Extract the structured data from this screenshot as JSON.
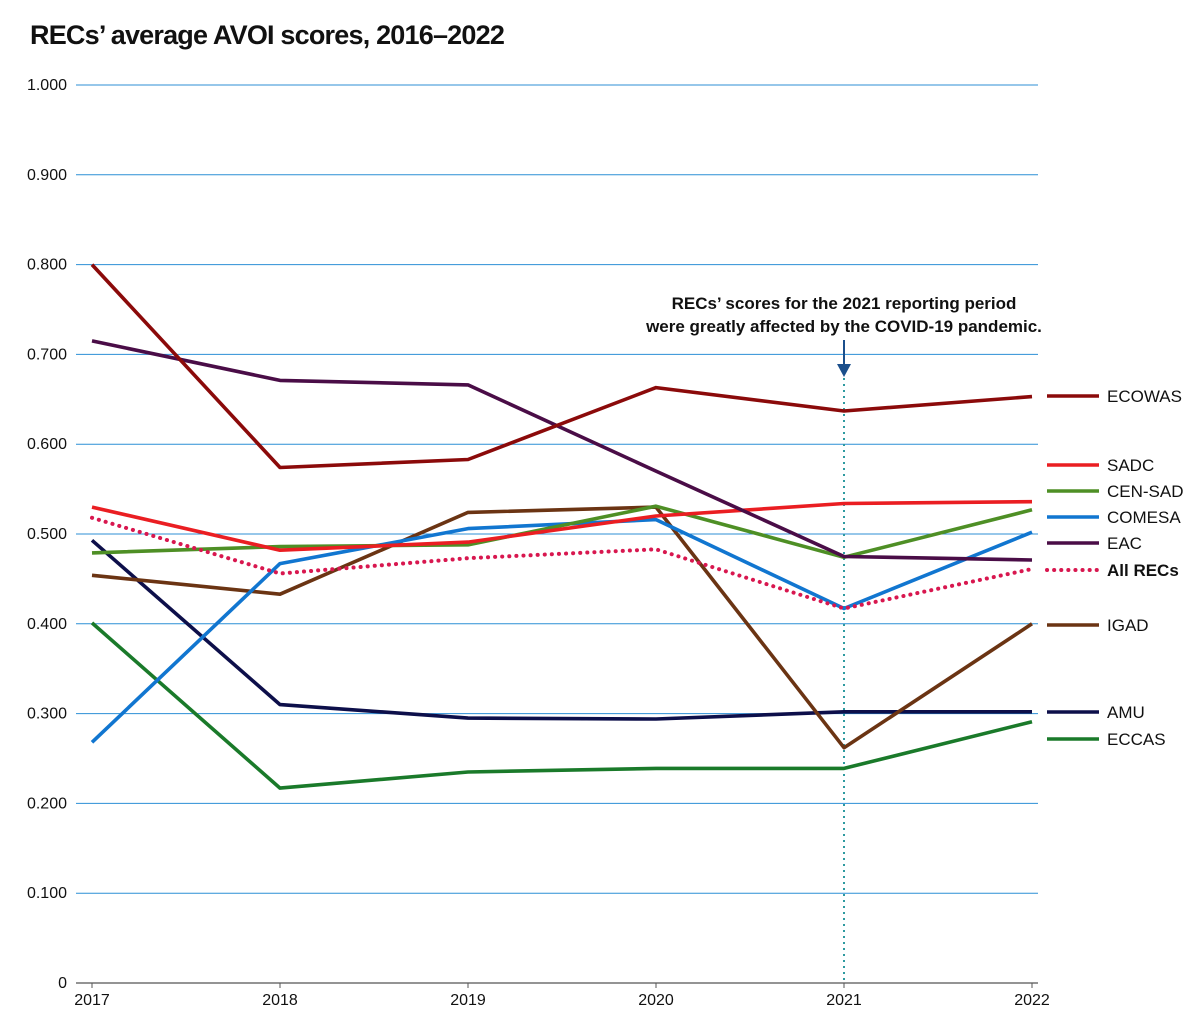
{
  "chart_data": {
    "type": "line",
    "title": "RECs’ average AVOI scores, 2016–2022",
    "xlabel": "",
    "ylabel": "",
    "x": [
      "2017",
      "2018",
      "2019",
      "2020",
      "2021",
      "2022"
    ],
    "ylim": [
      0,
      1
    ],
    "y_ticks": [
      "0",
      "0.100",
      "0.200",
      "0.300",
      "0.400",
      "0.500",
      "0.600",
      "0.700",
      "0.800",
      "0.900",
      "1.000"
    ],
    "grid": true,
    "legend_placement": "right",
    "series": [
      {
        "name": "ECOWAS",
        "color": "#8b0a0a",
        "style": "solid",
        "values": [
          0.8,
          0.574,
          0.583,
          0.663,
          0.637,
          0.653
        ]
      },
      {
        "name": "SADC",
        "color": "#ea1e22",
        "style": "solid",
        "values": [
          0.53,
          0.482,
          0.491,
          0.52,
          0.534,
          0.536
        ]
      },
      {
        "name": "CEN-SAD",
        "color": "#4e8f25",
        "style": "solid",
        "values": [
          0.479,
          0.486,
          0.488,
          0.531,
          0.474,
          0.527
        ]
      },
      {
        "name": "COMESA",
        "color": "#1176d0",
        "style": "solid",
        "values": [
          0.268,
          0.467,
          0.506,
          0.516,
          0.417,
          0.502
        ]
      },
      {
        "name": "EAC",
        "color": "#4a0d47",
        "style": "solid",
        "values": [
          0.715,
          0.671,
          0.666,
          0.57,
          0.475,
          0.471
        ]
      },
      {
        "name": "All RECs",
        "color": "#d8174f",
        "style": "dotted",
        "bold": true,
        "values": [
          0.518,
          0.456,
          0.473,
          0.483,
          0.417,
          0.461
        ]
      },
      {
        "name": "IGAD",
        "color": "#6b3413",
        "style": "solid",
        "values": [
          0.454,
          0.433,
          0.524,
          0.53,
          0.262,
          0.4
        ]
      },
      {
        "name": "AMU",
        "color": "#0d0f4a",
        "style": "solid",
        "values": [
          0.493,
          0.31,
          0.295,
          0.294,
          0.302,
          0.302
        ]
      },
      {
        "name": "ECCAS",
        "color": "#1a7a2a",
        "style": "solid",
        "values": [
          0.401,
          0.217,
          0.235,
          0.239,
          0.239,
          0.291
        ]
      }
    ],
    "legend_order": [
      "ECOWAS",
      "SADC",
      "CEN-SAD",
      "COMESA",
      "EAC",
      "All RECs",
      "IGAD",
      "AMU",
      "ECCAS"
    ],
    "annotation": {
      "x": "2021",
      "lines": [
        "RECs’ scores for the 2021 reporting period",
        "were greatly affected by the COVID-19 pandemic."
      ],
      "marker_color": "#1b4f8c",
      "guide_color": "#2e9aa0"
    },
    "gridline_color": "#2c8fd6"
  }
}
